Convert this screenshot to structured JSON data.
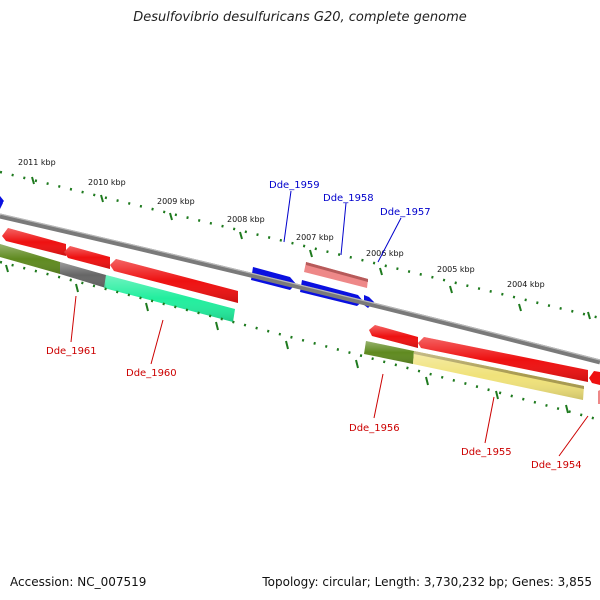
{
  "title": "Desulfovibrio desulfuricans G20, complete genome",
  "footer": {
    "accession": "Accession: NC_007519",
    "summary": "Topology: circular; Length: 3,730,232 bp; Genes: 3,855"
  },
  "colors": {
    "backbone": "#7a7a7a",
    "tick": "#1e7a1e",
    "forward_label": "#0000cc",
    "reverse_label": "#cc0000",
    "gene_red": "#ee1111",
    "gene_blue": "#0a10e0",
    "gene_pink": "#ee8888",
    "gene_olive": "#5f8a20",
    "gene_grey": "#666666",
    "gene_teal": "#22ee9e",
    "gene_yellow": "#f0e27a"
  },
  "kbp_labels": [
    "2011 kbp",
    "2010 kbp",
    "2009 kbp",
    "2008 kbp",
    "2007 kbp",
    "2006 kbp",
    "2005 kbp",
    "2004 kbp"
  ],
  "genes_forward": [
    {
      "id": "Dde_1959",
      "color": "blue"
    },
    {
      "id": "Dde_1958",
      "color": "pink"
    },
    {
      "id": "Dde_1957",
      "color": "blue"
    }
  ],
  "genes_reverse": [
    {
      "id": "Dde_1961",
      "color": "grey"
    },
    {
      "id": "Dde_1960",
      "color": "teal"
    },
    {
      "id": "Dde_1956",
      "color": "olive"
    },
    {
      "id": "Dde_1955",
      "color": "yellow"
    },
    {
      "id": "Dde_1954",
      "color": "red"
    }
  ]
}
